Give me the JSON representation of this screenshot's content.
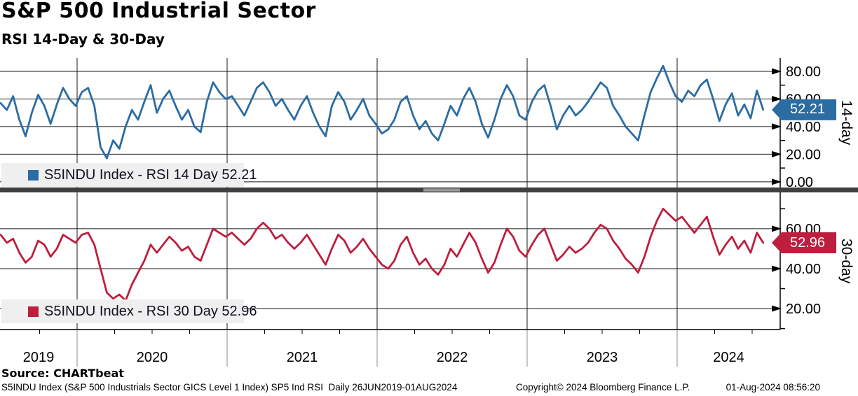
{
  "header": {
    "title": "S&P 500 Industrial Sector",
    "subtitle": "RSI 14-Day & 30-Day"
  },
  "footer": {
    "source": "Source: CHARTbeat",
    "description": "S5INDU Index (S&P 500 Industrials Sector GICS Level 1 Index) SP5 Ind RSI  Daily 26JUN2019-01AUG2024",
    "copyright": "Copyright© 2024 Bloomberg Finance L.P.",
    "timestamp": "01-Aug-2024 08:56:20"
  },
  "chart_data": [
    {
      "type": "line",
      "title": "RSI 14 Day",
      "legend": "S5INDU Index - RSI 14 Day 52.21",
      "axis_label": "14-day",
      "color": "#2b6ca3",
      "last_value": 52.21,
      "last_label": "52.21",
      "ylim": [
        -4.1,
        89.6
      ],
      "yticks": [
        0,
        20,
        40,
        60,
        80
      ],
      "ytick_labels": [
        "0.00",
        "20.00",
        "40.00",
        "60.00",
        "80.00"
      ],
      "xlim": [
        2019.486,
        2024.687
      ],
      "x_year_lines": [
        2020,
        2021,
        2022,
        2023,
        2024
      ],
      "x_labels": [
        "2019",
        "2020",
        "2021",
        "2022",
        "2023",
        "2024"
      ],
      "grid": true,
      "legend_position": "bottom-left",
      "series": [
        {
          "name": "S5INDU Index - RSI 14 Day",
          "t_start": 2019.49,
          "t_step": 0.0416667,
          "values": [
            57,
            52,
            62,
            45,
            33,
            50,
            63,
            55,
            42,
            56,
            68,
            60,
            55,
            65,
            68,
            55,
            25,
            17,
            30,
            24,
            40,
            52,
            45,
            58,
            70,
            50,
            60,
            66,
            55,
            45,
            52,
            40,
            36,
            58,
            72,
            65,
            60,
            62,
            55,
            48,
            58,
            68,
            72,
            65,
            55,
            60,
            52,
            45,
            55,
            62,
            50,
            40,
            33,
            55,
            65,
            58,
            45,
            52,
            60,
            48,
            42,
            35,
            38,
            45,
            58,
            62,
            48,
            38,
            44,
            35,
            30,
            42,
            55,
            48,
            60,
            68,
            58,
            42,
            32,
            45,
            60,
            70,
            62,
            48,
            45,
            58,
            66,
            70,
            55,
            38,
            48,
            55,
            48,
            52,
            58,
            65,
            72,
            68,
            55,
            48,
            40,
            35,
            30,
            48,
            65,
            75,
            84,
            72,
            62,
            58,
            66,
            62,
            70,
            74,
            60,
            44,
            56,
            64,
            48,
            56,
            46,
            66,
            52.21
          ]
        }
      ]
    },
    {
      "type": "line",
      "title": "RSI 30 Day",
      "legend": "S5INDU Index - RSI 30 Day 52.96",
      "axis_label": "30-day",
      "color": "#be1e3e",
      "last_value": 52.96,
      "last_label": "52.96",
      "ylim": [
        9.5,
        78.2
      ],
      "yticks": [
        20,
        40,
        60
      ],
      "ytick_labels": [
        "20.00",
        "40.00",
        "60.00"
      ],
      "xlim": [
        2019.486,
        2024.687
      ],
      "x_year_lines": [
        2020,
        2021,
        2022,
        2023,
        2024
      ],
      "x_labels": [
        "2019",
        "2020",
        "2021",
        "2022",
        "2023",
        "2024"
      ],
      "grid": true,
      "legend_position": "bottom-left",
      "series": [
        {
          "name": "S5INDU Index - RSI 30 Day",
          "t_start": 2019.49,
          "t_step": 0.0416667,
          "values": [
            57,
            53,
            55,
            48,
            43,
            46,
            54,
            52,
            46,
            50,
            57,
            55,
            53,
            57,
            58,
            52,
            40,
            28,
            25,
            27,
            24,
            32,
            38,
            44,
            52,
            48,
            52,
            56,
            53,
            49,
            51,
            46,
            44,
            52,
            60,
            58,
            56,
            58,
            55,
            52,
            55,
            60,
            63,
            60,
            55,
            57,
            53,
            50,
            53,
            57,
            52,
            47,
            42,
            50,
            57,
            54,
            48,
            51,
            55,
            50,
            46,
            42,
            40,
            44,
            52,
            56,
            48,
            42,
            45,
            40,
            37,
            42,
            50,
            46,
            52,
            58,
            53,
            45,
            38,
            43,
            52,
            60,
            56,
            49,
            46,
            52,
            57,
            60,
            52,
            44,
            47,
            51,
            48,
            50,
            53,
            58,
            62,
            60,
            54,
            50,
            45,
            42,
            38,
            46,
            56,
            64,
            70,
            67,
            64,
            66,
            62,
            58,
            62,
            66,
            56,
            47,
            52,
            56,
            50,
            54,
            48,
            58,
            52.96
          ]
        }
      ]
    }
  ]
}
